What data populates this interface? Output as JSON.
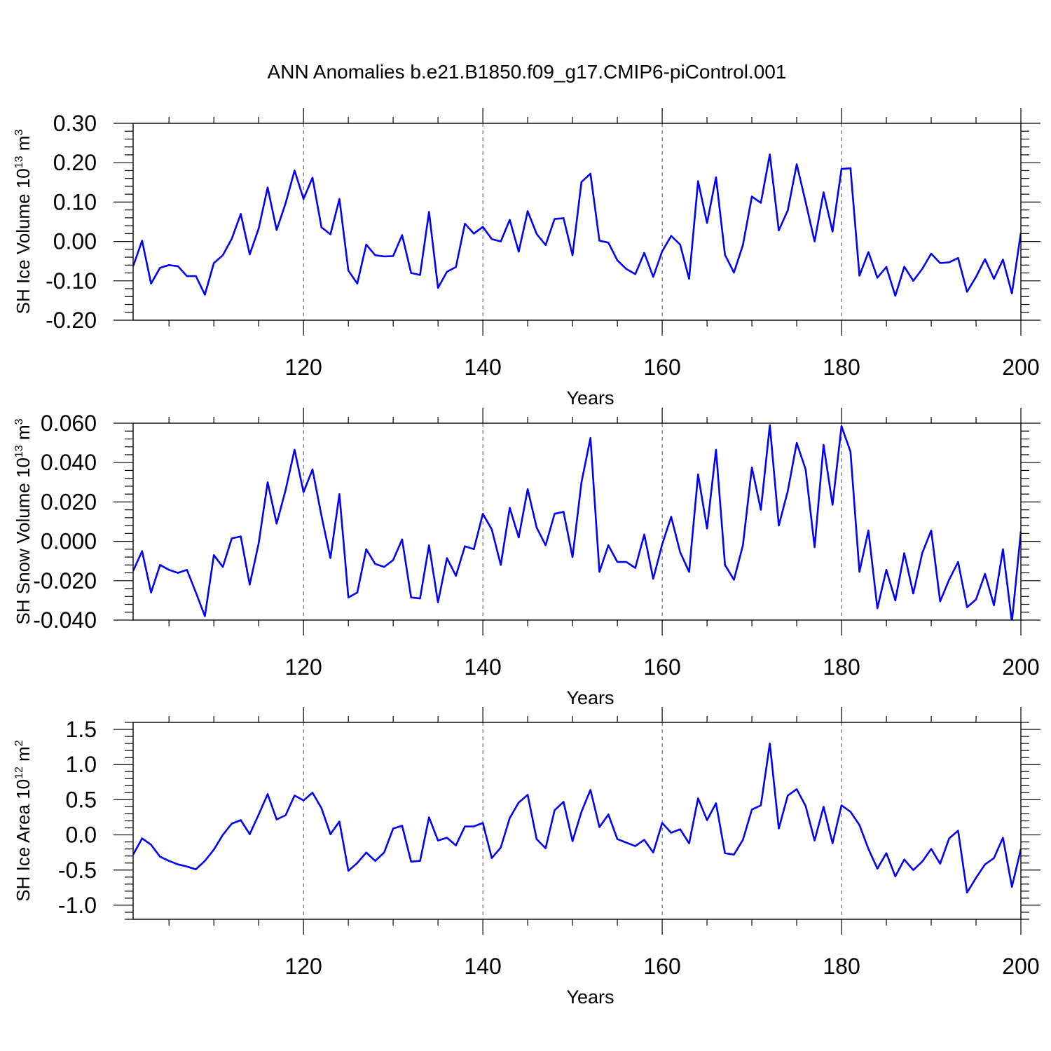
{
  "title": "ANN Anomalies b.e21.B1850.f09_g17.CMIP6-piControl.001",
  "line_color": "#0000ff",
  "chart_data": [
    {
      "type": "line",
      "title": "ANN Anomalies b.e21.B1850.f09_g17.CMIP6-piControl.001",
      "ylabel_base": "SH Ice Volume 10",
      "ylabel_exp": "13",
      "ylabel_unit": " m",
      "ylabel_unit_exp": "3",
      "xlabel": "Years",
      "xlim": [
        101,
        200
      ],
      "ylim": [
        -0.2,
        0.3
      ],
      "yticks": [
        -0.2,
        -0.1,
        0.0,
        0.1,
        0.2,
        0.3
      ],
      "ytick_labels": [
        "-0.20",
        "-0.10",
        "0.00",
        "0.10",
        "0.20",
        "0.30"
      ],
      "yminor_step": 0.02,
      "xticks": [
        120,
        140,
        160,
        180,
        200
      ],
      "xtick_labels": [
        "120",
        "140",
        "160",
        "180",
        "200"
      ],
      "xminor_step": 5,
      "x_start": 101,
      "values": [
        -0.063,
        0.002,
        -0.107,
        -0.067,
        -0.06,
        -0.063,
        -0.088,
        -0.088,
        -0.135,
        -0.055,
        -0.035,
        0.007,
        0.07,
        -0.033,
        0.033,
        0.137,
        0.029,
        0.097,
        0.18,
        0.108,
        0.162,
        0.036,
        0.018,
        0.108,
        -0.074,
        -0.107,
        -0.008,
        -0.035,
        -0.038,
        -0.037,
        0.016,
        -0.08,
        -0.085,
        0.075,
        -0.118,
        -0.077,
        -0.065,
        0.045,
        0.02,
        0.037,
        0.006,
        0.0,
        0.055,
        -0.026,
        0.077,
        0.019,
        -0.009,
        0.057,
        0.059,
        -0.035,
        0.151,
        0.172,
        0.002,
        -0.003,
        -0.048,
        -0.07,
        -0.083,
        -0.029,
        -0.09,
        -0.025,
        0.014,
        -0.008,
        -0.095,
        0.153,
        0.047,
        0.163,
        -0.034,
        -0.079,
        -0.009,
        0.114,
        0.098,
        0.221,
        0.028,
        0.079,
        0.196,
        0.1,
        0.0,
        0.125,
        0.025,
        0.184,
        0.186,
        -0.087,
        -0.027,
        -0.092,
        -0.065,
        -0.138,
        -0.064,
        -0.1,
        -0.07,
        -0.031,
        -0.055,
        -0.053,
        -0.042,
        -0.128,
        -0.09,
        -0.045,
        -0.095,
        -0.046,
        -0.132,
        0.022
      ]
    },
    {
      "type": "line",
      "ylabel_base": "SH Snow Volume 10",
      "ylabel_exp": "13",
      "ylabel_unit": " m",
      "ylabel_unit_exp": "3",
      "xlabel": "Years",
      "xlim": [
        101,
        200
      ],
      "ylim": [
        -0.04,
        0.06
      ],
      "yticks": [
        -0.04,
        -0.02,
        0.0,
        0.02,
        0.04,
        0.06
      ],
      "ytick_labels": [
        "-0.040",
        "-0.020",
        "0.000",
        "0.020",
        "0.040",
        "0.060"
      ],
      "yminor_step": 0.004,
      "xticks": [
        120,
        140,
        160,
        180,
        200
      ],
      "xtick_labels": [
        "120",
        "140",
        "160",
        "180",
        "200"
      ],
      "xminor_step": 5,
      "x_start": 101,
      "values": [
        -0.015,
        -0.005,
        -0.026,
        -0.012,
        -0.0145,
        -0.016,
        -0.0145,
        -0.026,
        -0.038,
        -0.007,
        -0.013,
        0.0015,
        0.0025,
        -0.022,
        -0.001,
        0.03,
        0.009,
        0.026,
        0.0465,
        0.025,
        0.0365,
        0.013,
        -0.0085,
        0.024,
        -0.0285,
        -0.026,
        -0.004,
        -0.0115,
        -0.013,
        -0.0095,
        0.001,
        -0.0285,
        -0.029,
        -0.002,
        -0.031,
        -0.0085,
        -0.0175,
        -0.0025,
        -0.004,
        0.014,
        0.006,
        -0.012,
        0.017,
        0.002,
        0.0265,
        0.007,
        -0.002,
        0.014,
        0.015,
        -0.008,
        0.03,
        0.0525,
        -0.0155,
        -0.002,
        -0.0105,
        -0.0105,
        -0.0135,
        0.0035,
        -0.019,
        -0.0015,
        0.0125,
        -0.0055,
        -0.0155,
        0.034,
        0.0065,
        0.0465,
        -0.012,
        -0.0195,
        -0.002,
        0.0375,
        0.016,
        0.059,
        0.008,
        0.0255,
        0.05,
        0.0365,
        -0.003,
        0.049,
        0.0185,
        0.0585,
        0.0455,
        -0.0155,
        0.0055,
        -0.034,
        -0.0145,
        -0.03,
        -0.006,
        -0.0265,
        -0.006,
        0.0055,
        -0.0305,
        -0.0195,
        -0.0105,
        -0.0335,
        -0.0295,
        -0.0165,
        -0.0325,
        -0.004,
        -0.041,
        0.005
      ]
    },
    {
      "type": "line",
      "ylabel_base": "SH Ice Area 10",
      "ylabel_exp": "12",
      "ylabel_unit": " m",
      "ylabel_unit_exp": "2",
      "xlabel": "Years",
      "xlim": [
        101,
        200
      ],
      "ylim": [
        -1.2,
        1.6
      ],
      "yticks": [
        -1.0,
        -0.5,
        0.0,
        0.5,
        1.0,
        1.5
      ],
      "ytick_labels": [
        "-1.0",
        "-0.5",
        "0.0",
        "0.5",
        "1.0",
        "1.5"
      ],
      "yminor_step": 0.1,
      "xticks": [
        120,
        140,
        160,
        180,
        200
      ],
      "xtick_labels": [
        "120",
        "140",
        "160",
        "180",
        "200"
      ],
      "xminor_step": 5,
      "x_start": 101,
      "values": [
        -0.28,
        -0.05,
        -0.14,
        -0.31,
        -0.37,
        -0.42,
        -0.45,
        -0.49,
        -0.37,
        -0.21,
        0.0,
        0.16,
        0.21,
        0.01,
        0.29,
        0.58,
        0.22,
        0.28,
        0.56,
        0.49,
        0.6,
        0.38,
        0.01,
        0.19,
        -0.51,
        -0.4,
        -0.25,
        -0.37,
        -0.25,
        0.09,
        0.13,
        -0.38,
        -0.37,
        0.25,
        -0.08,
        -0.04,
        -0.15,
        0.12,
        0.12,
        0.17,
        -0.33,
        -0.18,
        0.24,
        0.46,
        0.57,
        -0.06,
        -0.19,
        0.35,
        0.47,
        -0.09,
        0.33,
        0.64,
        0.11,
        0.29,
        -0.06,
        -0.11,
        -0.16,
        -0.07,
        -0.25,
        0.17,
        0.03,
        0.08,
        -0.12,
        0.52,
        0.21,
        0.45,
        -0.26,
        -0.28,
        -0.07,
        0.36,
        0.42,
        1.3,
        0.09,
        0.56,
        0.65,
        0.41,
        -0.08,
        0.4,
        -0.12,
        0.42,
        0.33,
        0.14,
        -0.2,
        -0.48,
        -0.26,
        -0.59,
        -0.35,
        -0.5,
        -0.38,
        -0.2,
        -0.41,
        -0.05,
        0.06,
        -0.82,
        -0.61,
        -0.42,
        -0.33,
        -0.04,
        -0.74,
        -0.2
      ]
    }
  ]
}
